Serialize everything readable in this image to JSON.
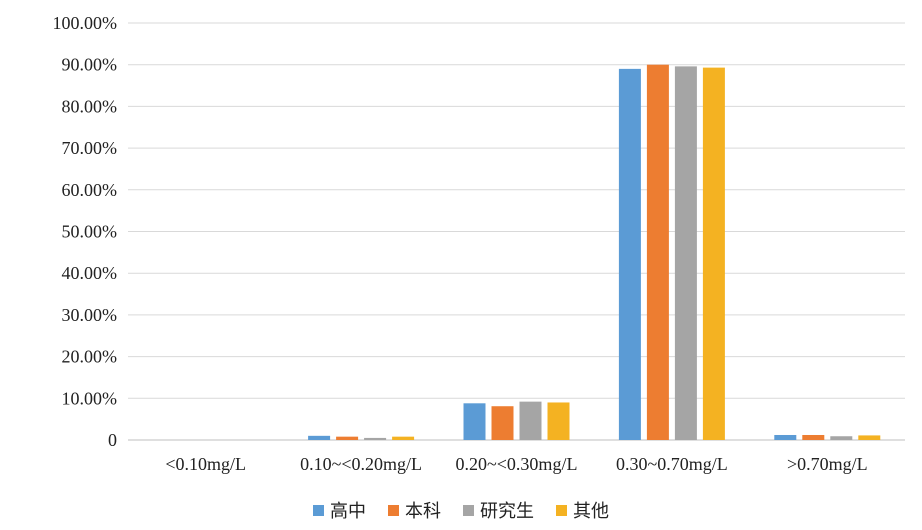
{
  "chart_data": {
    "type": "bar",
    "categories": [
      "<0.10mg/L",
      "0.10~<0.20mg/L",
      "0.20~<0.30mg/L",
      "0.30~0.70mg/L",
      ">0.70mg/L"
    ],
    "series": [
      {
        "name": "高中",
        "color": "#5B9BD5",
        "values": [
          0.0,
          1.0,
          8.8,
          89.0,
          1.2
        ]
      },
      {
        "name": "本科",
        "color": "#ED7D31",
        "values": [
          0.0,
          0.8,
          8.1,
          90.0,
          1.2
        ]
      },
      {
        "name": "研究生",
        "color": "#A5A5A5",
        "values": [
          0.0,
          0.5,
          9.2,
          89.6,
          0.9
        ]
      },
      {
        "name": "其他",
        "color": "#F4B222",
        "values": [
          0.0,
          0.8,
          9.0,
          89.3,
          1.1
        ]
      }
    ],
    "y_ticks": [
      "0",
      "10.00%",
      "20.00%",
      "30.00%",
      "40.00%",
      "50.00%",
      "60.00%",
      "70.00%",
      "80.00%",
      "90.00%",
      "100.00%"
    ],
    "ylim": [
      0,
      100
    ],
    "grid": true,
    "legend_position": "bottom"
  }
}
